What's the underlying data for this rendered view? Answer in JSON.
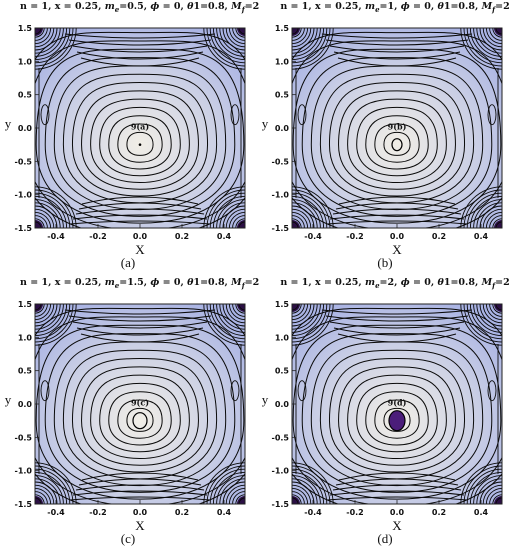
{
  "panels": [
    {
      "title_parts": [
        "n = 1, x = 0.25, ",
        "m",
        "e",
        "=0.5, ",
        "ϕ",
        " = 0, ",
        "θ",
        "1=0.8, ",
        "M",
        "f",
        "=2"
      ],
      "annotation": "9(a)",
      "caption": "(a)",
      "center": "dot"
    },
    {
      "title_parts": [
        "n = 1, x = 0.25, ",
        "m",
        "e",
        "=1, ",
        "ϕ",
        " = 0, ",
        "θ",
        "1=0.8, ",
        "M",
        "f",
        "=2"
      ],
      "annotation": "9(b)",
      "caption": "(b)",
      "center": "small-loop"
    },
    {
      "title_parts": [
        "n = 1, x = 0.25, ",
        "m",
        "e",
        "=1.5, ",
        "ϕ",
        " = 0, ",
        "θ",
        "1=0.8, ",
        "M",
        "f",
        "=2"
      ],
      "annotation": "9(c)",
      "caption": "(c)",
      "center": "loop"
    },
    {
      "title_parts": [
        "n = 1, x = 0.25, ",
        "m",
        "e",
        "=2, ",
        "ϕ",
        " = 0, ",
        "θ",
        "1=0.8, ",
        "M",
        "f",
        "=2"
      ],
      "annotation": "9(d)",
      "caption": "(d)",
      "center": "filled-purple"
    }
  ],
  "chart_data": [
    {
      "type": "contour",
      "xlabel": "X",
      "ylabel": "y",
      "xlim": [
        -0.5,
        0.5
      ],
      "ylim": [
        -1.5,
        1.5
      ],
      "xticks": [
        "-0.4",
        "-0.2",
        "0.0",
        "0.2",
        "0.4"
      ],
      "yticks": [
        "-1.5",
        "-1.0",
        "-0.5",
        "0.0",
        "0.5",
        "1.0",
        "1.5"
      ],
      "annotation": "9(a)",
      "center": [
        0.0,
        -0.25
      ]
    },
    {
      "type": "contour",
      "xlabel": "X",
      "ylabel": "y",
      "xlim": [
        -0.5,
        0.5
      ],
      "ylim": [
        -1.5,
        1.5
      ],
      "xticks": [
        "-0.4",
        "-0.2",
        "0.0",
        "0.2",
        "0.4"
      ],
      "yticks": [
        "-1.5",
        "-1.0",
        "-0.5",
        "0.0",
        "0.5",
        "1.0",
        "1.5"
      ],
      "annotation": "9(b)",
      "center": [
        0.0,
        -0.25
      ]
    },
    {
      "type": "contour",
      "xlabel": "X",
      "ylabel": "y",
      "xlim": [
        -0.5,
        0.5
      ],
      "ylim": [
        -1.5,
        1.5
      ],
      "xticks": [
        "-0.4",
        "-0.2",
        "0.0",
        "0.2",
        "0.4"
      ],
      "yticks": [
        "-1.5",
        "-1.0",
        "-0.5",
        "0.0",
        "0.5",
        "1.0",
        "1.5"
      ],
      "annotation": "9(c)",
      "center": [
        0.0,
        -0.25
      ]
    },
    {
      "type": "contour",
      "xlabel": "X",
      "ylabel": "y",
      "xlim": [
        -0.5,
        0.5
      ],
      "ylim": [
        -1.5,
        1.5
      ],
      "xticks": [
        "-0.4",
        "-0.2",
        "0.0",
        "0.2",
        "0.4"
      ],
      "yticks": [
        "-1.5",
        "-1.0",
        "-0.5",
        "0.0",
        "0.5",
        "1.0",
        "1.5"
      ],
      "annotation": "9(d)",
      "center": [
        0.0,
        -0.25
      ]
    }
  ],
  "colors": {
    "background_far": "#a9b3e4",
    "background_near": "#f1eee6",
    "line": "#0a0a0a",
    "dark_corner": "#2b0f44",
    "purple_fill": "#4b1d7a"
  }
}
